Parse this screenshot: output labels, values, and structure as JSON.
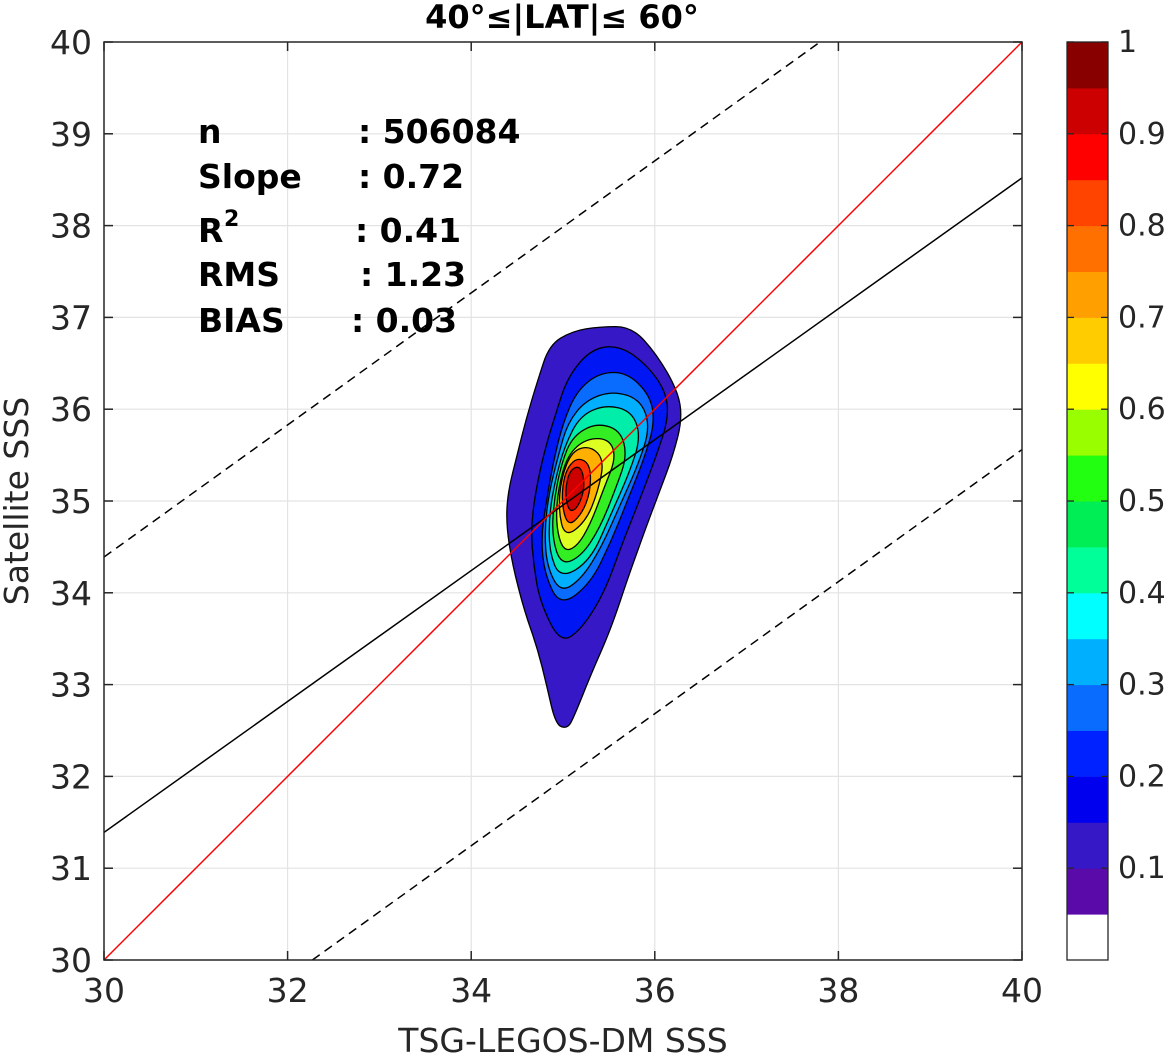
{
  "chart_data": {
    "type": "contour",
    "title": "40°≤|LAT|≤ 60°",
    "xlabel": "TSG-LEGOS-DM SSS",
    "ylabel": "Satellite SSS",
    "xlim": [
      30,
      40
    ],
    "ylim": [
      30,
      40
    ],
    "xticks": [
      "30",
      "32",
      "34",
      "36",
      "38",
      "40"
    ],
    "yticks": [
      "30",
      "31",
      "32",
      "33",
      "34",
      "35",
      "36",
      "37",
      "38",
      "39",
      "40"
    ],
    "grid": true,
    "stats": [
      {
        "label": "n",
        "value": ": 506084"
      },
      {
        "label": "Slope",
        "value": ": 0.72"
      },
      {
        "label": "R",
        "sup": "2",
        "value": ": 0.41"
      },
      {
        "label": "RMS",
        "value": ": 1.23"
      },
      {
        "label": "BIAS",
        "value": ": 0.03"
      }
    ],
    "lines": {
      "one_to_one": {
        "x": [
          30,
          40
        ],
        "y": [
          30,
          40
        ],
        "color": "#ff0000"
      },
      "regression": {
        "x": [
          30,
          40
        ],
        "y": [
          31.39,
          38.52
        ],
        "color": "#000000"
      },
      "upper_bound": {
        "x": [
          30,
          37.8
        ],
        "y": [
          34.39,
          40
        ],
        "color": "#000000",
        "dash": true
      },
      "lower_bound": {
        "x": [
          32.27,
          40
        ],
        "y": [
          30,
          35.56
        ],
        "color": "#000000",
        "dash": true
      }
    },
    "density_peak": {
      "x": 35.1,
      "y": 35.15,
      "value": 1.0
    },
    "contours": [
      {
        "level": 0.05,
        "color": "#3618c6",
        "points": [
          [
            35.05,
            32.52
          ],
          [
            34.92,
            32.56
          ],
          [
            34.82,
            33.0
          ],
          [
            34.72,
            33.4
          ],
          [
            34.58,
            33.8
          ],
          [
            34.45,
            34.3
          ],
          [
            34.38,
            34.75
          ],
          [
            34.4,
            35.1
          ],
          [
            34.5,
            35.5
          ],
          [
            34.6,
            35.9
          ],
          [
            34.72,
            36.3
          ],
          [
            34.85,
            36.7
          ],
          [
            35.1,
            36.85
          ],
          [
            35.4,
            36.9
          ],
          [
            35.75,
            36.9
          ],
          [
            36.02,
            36.6
          ],
          [
            36.25,
            36.2
          ],
          [
            36.3,
            35.9
          ],
          [
            36.2,
            35.5
          ],
          [
            36.05,
            35.1
          ],
          [
            35.9,
            34.7
          ],
          [
            35.72,
            34.2
          ],
          [
            35.52,
            33.6
          ],
          [
            35.3,
            33.1
          ],
          [
            35.12,
            32.65
          ]
        ]
      },
      {
        "level": 0.15,
        "color": "#0016f2",
        "points": [
          [
            34.97,
            33.45
          ],
          [
            34.75,
            33.9
          ],
          [
            34.68,
            34.3
          ],
          [
            34.65,
            34.7
          ],
          [
            34.7,
            35.1
          ],
          [
            34.8,
            35.55
          ],
          [
            34.92,
            35.95
          ],
          [
            35.05,
            36.35
          ],
          [
            35.3,
            36.65
          ],
          [
            35.6,
            36.7
          ],
          [
            35.9,
            36.5
          ],
          [
            36.12,
            36.2
          ],
          [
            36.15,
            35.9
          ],
          [
            36.02,
            35.5
          ],
          [
            35.85,
            35.05
          ],
          [
            35.65,
            34.55
          ],
          [
            35.45,
            34.0
          ],
          [
            35.2,
            33.6
          ]
        ]
      },
      {
        "level": 0.25,
        "color": "#0a6cff",
        "points": [
          [
            34.97,
            33.85
          ],
          [
            34.8,
            34.2
          ],
          [
            34.76,
            34.6
          ],
          [
            34.82,
            35.0
          ],
          [
            34.9,
            35.45
          ],
          [
            35.0,
            35.85
          ],
          [
            35.15,
            36.2
          ],
          [
            35.4,
            36.4
          ],
          [
            35.7,
            36.4
          ],
          [
            35.95,
            36.15
          ],
          [
            36.0,
            35.85
          ],
          [
            35.88,
            35.45
          ],
          [
            35.7,
            35.0
          ],
          [
            35.52,
            34.55
          ],
          [
            35.3,
            34.1
          ]
        ]
      },
      {
        "level": 0.35,
        "color": "#00b0ff",
        "points": [
          [
            34.97,
            34.0
          ],
          [
            34.82,
            34.3
          ],
          [
            34.8,
            34.7
          ],
          [
            34.85,
            35.1
          ],
          [
            34.95,
            35.5
          ],
          [
            35.05,
            35.85
          ],
          [
            35.25,
            36.1
          ],
          [
            35.55,
            36.2
          ],
          [
            35.85,
            36.1
          ],
          [
            35.95,
            35.8
          ],
          [
            35.82,
            35.4
          ],
          [
            35.62,
            34.95
          ],
          [
            35.42,
            34.5
          ],
          [
            35.2,
            34.15
          ]
        ]
      },
      {
        "level": 0.45,
        "color": "#00eeaa",
        "points": [
          [
            34.97,
            34.15
          ],
          [
            34.85,
            34.45
          ],
          [
            34.85,
            34.85
          ],
          [
            34.92,
            35.25
          ],
          [
            35.02,
            35.6
          ],
          [
            35.18,
            35.92
          ],
          [
            35.45,
            36.05
          ],
          [
            35.75,
            35.98
          ],
          [
            35.85,
            35.7
          ],
          [
            35.72,
            35.3
          ],
          [
            35.52,
            34.85
          ],
          [
            35.3,
            34.35
          ]
        ]
      },
      {
        "level": 0.55,
        "color": "#33ee22",
        "points": [
          [
            34.98,
            34.3
          ],
          [
            34.88,
            34.6
          ],
          [
            34.9,
            35.0
          ],
          [
            34.98,
            35.4
          ],
          [
            35.1,
            35.7
          ],
          [
            35.35,
            35.85
          ],
          [
            35.62,
            35.78
          ],
          [
            35.7,
            35.5
          ],
          [
            35.58,
            35.15
          ],
          [
            35.4,
            34.7
          ],
          [
            35.2,
            34.4
          ]
        ]
      },
      {
        "level": 0.65,
        "color": "#ddff22",
        "points": [
          [
            35.0,
            34.45
          ],
          [
            34.92,
            34.75
          ],
          [
            34.95,
            35.15
          ],
          [
            35.05,
            35.5
          ],
          [
            35.25,
            35.68
          ],
          [
            35.5,
            35.68
          ],
          [
            35.58,
            35.48
          ],
          [
            35.45,
            35.15
          ],
          [
            35.3,
            34.75
          ],
          [
            35.15,
            34.5
          ]
        ]
      },
      {
        "level": 0.75,
        "color": "#ffb000",
        "points": [
          [
            35.02,
            34.6
          ],
          [
            34.95,
            34.9
          ],
          [
            34.98,
            35.25
          ],
          [
            35.1,
            35.55
          ],
          [
            35.3,
            35.6
          ],
          [
            35.45,
            35.45
          ],
          [
            35.38,
            35.1
          ],
          [
            35.25,
            34.78
          ]
        ]
      },
      {
        "level": 0.85,
        "color": "#ff3000",
        "points": [
          [
            35.05,
            34.72
          ],
          [
            34.98,
            35.0
          ],
          [
            35.02,
            35.32
          ],
          [
            35.15,
            35.48
          ],
          [
            35.3,
            35.4
          ],
          [
            35.3,
            35.1
          ],
          [
            35.2,
            34.85
          ]
        ]
      },
      {
        "level": 0.95,
        "color": "#cc0000",
        "points": [
          [
            35.06,
            34.88
          ],
          [
            35.02,
            35.12
          ],
          [
            35.08,
            35.35
          ],
          [
            35.2,
            35.38
          ],
          [
            35.24,
            35.15
          ],
          [
            35.16,
            34.92
          ]
        ]
      }
    ],
    "colorbar": {
      "ticks": [
        "0.1",
        "0.2",
        "0.3",
        "0.4",
        "0.5",
        "0.6",
        "0.7",
        "0.8",
        "0.9",
        "1"
      ],
      "levels": [
        0,
        0.05,
        0.1,
        0.15,
        0.2,
        0.25,
        0.3,
        0.35,
        0.4,
        0.45,
        0.5,
        0.55,
        0.6,
        0.65,
        0.7,
        0.75,
        0.8,
        0.85,
        0.9,
        0.95,
        1.0
      ],
      "colors": [
        "#ffffff",
        "#5a0aa8",
        "#3618c6",
        "#0000ee",
        "#0022ff",
        "#0a6cff",
        "#00b0ff",
        "#00ffff",
        "#00ff99",
        "#00ee55",
        "#22ff11",
        "#99ff00",
        "#ffff00",
        "#ffcc00",
        "#ffa000",
        "#ff7000",
        "#ff4400",
        "#ff0000",
        "#cc0000",
        "#880000"
      ]
    }
  }
}
